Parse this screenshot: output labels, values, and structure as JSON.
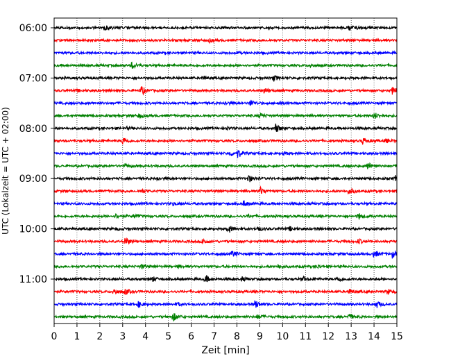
{
  "chart_data": {
    "type": "line",
    "title": "",
    "xlabel": "Zeit  [min]",
    "ylabel": "UTC (Lokalzeit = UTC + 02:00)",
    "xlim": [
      0,
      15
    ],
    "x_ticks": [
      0,
      1,
      2,
      3,
      4,
      5,
      6,
      7,
      8,
      9,
      10,
      11,
      12,
      13,
      14,
      15
    ],
    "y_tick_labels": [
      "06:00",
      "07:00",
      "08:00",
      "09:00",
      "10:00",
      "11:00"
    ],
    "grid_x": true,
    "trace_colors": [
      "#000000",
      "#ff0000",
      "#0000ff",
      "#008000"
    ],
    "traces": [
      {
        "start": "06:00",
        "events": [
          [
            2.2,
            0.5
          ],
          [
            12.9,
            0.6
          ],
          [
            13.2,
            0.3
          ]
        ]
      },
      {
        "start": "06:15",
        "events": [
          [
            6.8,
            0.3
          ]
        ]
      },
      {
        "start": "06:30",
        "events": [
          [
            8.0,
            0.2
          ]
        ]
      },
      {
        "start": "06:45",
        "events": [
          [
            3.4,
            0.7
          ],
          [
            11.2,
            0.3
          ]
        ]
      },
      {
        "start": "07:00",
        "events": [
          [
            9.6,
            0.6
          ],
          [
            6.5,
            0.3
          ]
        ]
      },
      {
        "start": "07:15",
        "events": [
          [
            3.8,
            1.0
          ],
          [
            9.2,
            0.6
          ],
          [
            14.8,
            0.7
          ],
          [
            1.0,
            0.2
          ]
        ]
      },
      {
        "start": "07:30",
        "events": [
          [
            8.6,
            0.6
          ],
          [
            9.8,
            0.3
          ],
          [
            7.5,
            0.3
          ]
        ]
      },
      {
        "start": "07:45",
        "events": [
          [
            3.7,
            0.4
          ],
          [
            9.0,
            0.5
          ],
          [
            14.0,
            0.7
          ]
        ]
      },
      {
        "start": "08:00",
        "events": [
          [
            9.7,
            0.9
          ],
          [
            7.5,
            0.3
          ],
          [
            3.2,
            0.2
          ]
        ]
      },
      {
        "start": "08:15",
        "events": [
          [
            3.0,
            0.8
          ],
          [
            13.5,
            0.7
          ],
          [
            14.5,
            0.4
          ]
        ]
      },
      {
        "start": "08:30",
        "events": [
          [
            8.0,
            1.0
          ],
          [
            7.7,
            0.5
          ],
          [
            10.0,
            0.3
          ]
        ]
      },
      {
        "start": "08:45",
        "events": [
          [
            3.1,
            0.3
          ],
          [
            13.7,
            0.8
          ]
        ]
      },
      {
        "start": "09:00",
        "events": [
          [
            8.5,
            0.8
          ],
          [
            14.9,
            0.7
          ],
          [
            4.5,
            0.3
          ]
        ]
      },
      {
        "start": "09:15",
        "events": [
          [
            9.0,
            0.8
          ],
          [
            12.9,
            0.7
          ],
          [
            3.8,
            0.4
          ]
        ]
      },
      {
        "start": "09:30",
        "events": [
          [
            8.3,
            0.6
          ],
          [
            5.2,
            0.3
          ]
        ]
      },
      {
        "start": "09:45",
        "events": [
          [
            2.7,
            0.4
          ],
          [
            3.5,
            0.4
          ],
          [
            13.3,
            0.7
          ],
          [
            8.5,
            0.2
          ]
        ]
      },
      {
        "start": "10:00",
        "events": [
          [
            7.6,
            1.0
          ],
          [
            8.9,
            0.5
          ],
          [
            10.3,
            0.4
          ],
          [
            2.7,
            0.2
          ]
        ]
      },
      {
        "start": "10:15",
        "events": [
          [
            3.1,
            0.9
          ],
          [
            6.5,
            0.6
          ],
          [
            13.3,
            0.5
          ]
        ]
      },
      {
        "start": "10:30",
        "events": [
          [
            7.8,
            0.6
          ],
          [
            14.0,
            0.7
          ],
          [
            14.8,
            0.7
          ]
        ]
      },
      {
        "start": "10:45",
        "events": [
          [
            3.8,
            0.4
          ],
          [
            5.4,
            0.3
          ],
          [
            9.8,
            0.4
          ],
          [
            11.5,
            0.3
          ]
        ]
      },
      {
        "start": "11:00",
        "events": [
          [
            6.6,
            0.8
          ],
          [
            4.3,
            0.5
          ],
          [
            8.2,
            0.4
          ],
          [
            10.9,
            0.4
          ],
          [
            12.4,
            0.7
          ]
        ]
      },
      {
        "start": "11:15",
        "events": [
          [
            2.6,
            0.7
          ],
          [
            3.1,
            0.6
          ],
          [
            12.9,
            0.5
          ],
          [
            14.6,
            0.5
          ]
        ]
      },
      {
        "start": "11:30",
        "events": [
          [
            3.7,
            0.6
          ],
          [
            8.8,
            0.8
          ],
          [
            14.1,
            0.7
          ],
          [
            5.4,
            0.3
          ]
        ]
      },
      {
        "start": "11:45",
        "events": [
          [
            5.2,
            0.9
          ],
          [
            8.9,
            0.4
          ],
          [
            12.9,
            0.6
          ]
        ]
      }
    ]
  }
}
